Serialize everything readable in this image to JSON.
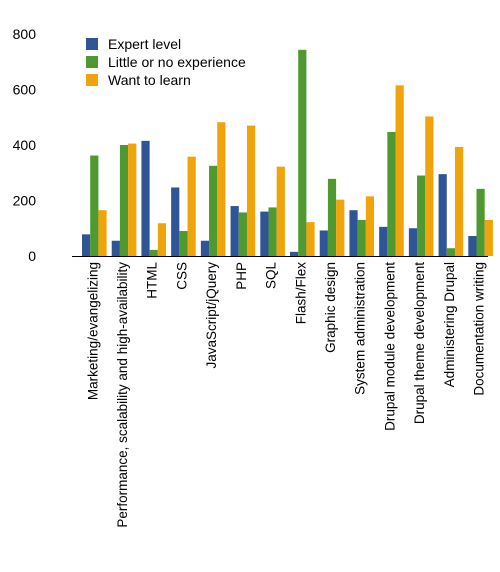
{
  "chart_data": {
    "type": "bar",
    "title": "",
    "xlabel": "",
    "ylabel": "",
    "ylim": [
      0,
      800
    ],
    "yticks": [
      "0",
      "200",
      "400",
      "600",
      "800"
    ],
    "grid": false,
    "legend_placement": "top-left",
    "categories": [
      "Marketing/evangelizing",
      "Performance, scalability and high-availability",
      "HTML",
      "CSS",
      "JavaScript/jQuery",
      "PHP",
      "SQL",
      "Flash/Flex",
      "Graphic design",
      "System administration",
      "Drupal module development",
      "Drupal theme development",
      "Administering Drupal",
      "Documentation writing"
    ],
    "series": [
      {
        "name": "Expert level",
        "color": "#2f5597",
        "values": [
          78,
          55,
          415,
          247,
          55,
          180,
          160,
          15,
          92,
          165,
          105,
          100,
          295,
          72
        ]
      },
      {
        "name": "Little or no experience",
        "color": "#4e9a30",
        "values": [
          362,
          400,
          22,
          90,
          325,
          157,
          175,
          743,
          278,
          130,
          447,
          290,
          28,
          242
        ]
      },
      {
        "name": "Want to learn",
        "color": "#f0a30a",
        "values": [
          165,
          405,
          118,
          358,
          482,
          470,
          322,
          122,
          203,
          215,
          615,
          503,
          393,
          130
        ]
      }
    ]
  }
}
